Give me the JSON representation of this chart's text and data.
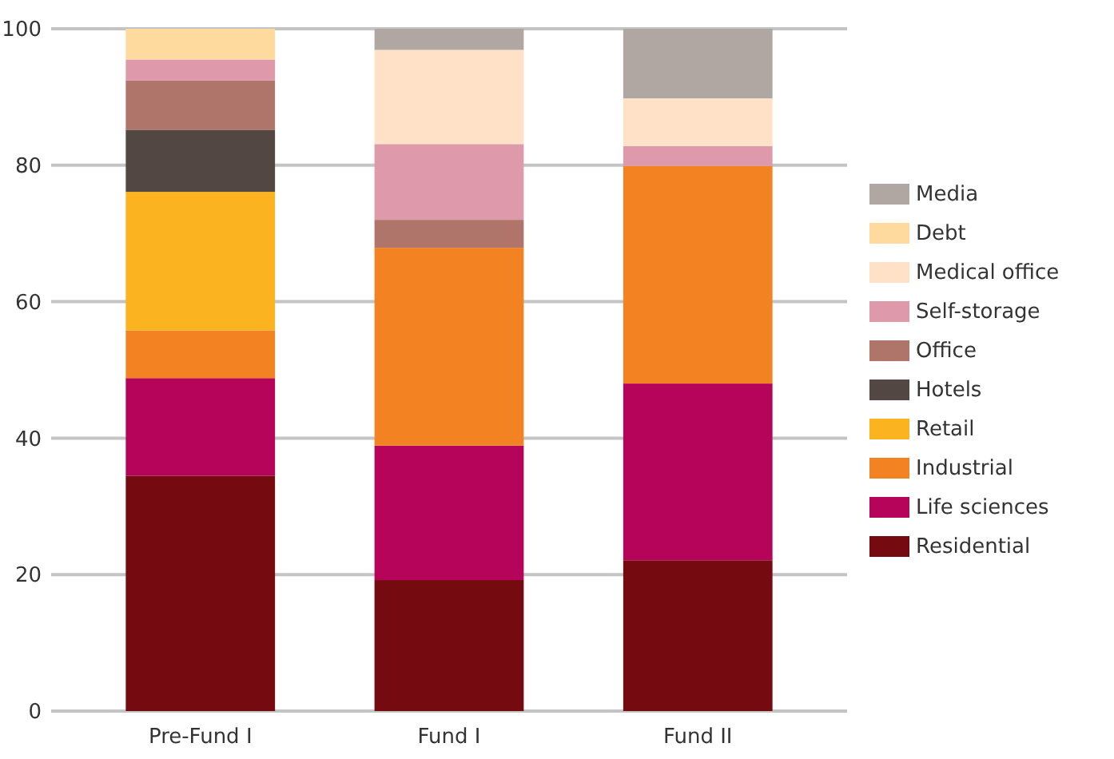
{
  "chart_data": {
    "type": "bar",
    "stacked": true,
    "categories": [
      "Pre-Fund I",
      "Fund I",
      "Fund II"
    ],
    "ylim": [
      0,
      100
    ],
    "yticks": [
      0,
      20,
      40,
      60,
      80,
      100
    ],
    "grid": "y",
    "legend": "right",
    "series": [
      {
        "name": "Residential",
        "color": "#750a10",
        "values": [
          34.5,
          19.2,
          22.1
        ]
      },
      {
        "name": "Life sciences",
        "color": "#b5045a",
        "values": [
          14.3,
          19.7,
          25.9
        ]
      },
      {
        "name": "Industrial",
        "color": "#f38322",
        "values": [
          7,
          29,
          31.9
        ]
      },
      {
        "name": "Retail",
        "color": "#fbb41f",
        "values": [
          20.3,
          0,
          0
        ]
      },
      {
        "name": "Hotels",
        "color": "#534743",
        "values": [
          9.1,
          0,
          0
        ]
      },
      {
        "name": "Office",
        "color": "#b0756a",
        "values": [
          7.2,
          4.1,
          0
        ]
      },
      {
        "name": "Self-storage",
        "color": "#de9aab",
        "values": [
          3.1,
          11.1,
          2.9
        ]
      },
      {
        "name": "Medical office",
        "color": "#ffe1c8",
        "values": [
          0,
          13.8,
          7
        ]
      },
      {
        "name": "Debt",
        "color": "#ffda9e",
        "values": [
          4.5,
          0,
          0
        ]
      },
      {
        "name": "Media",
        "color": "#b0a7a2",
        "values": [
          0,
          3.1,
          10.2
        ]
      }
    ]
  }
}
